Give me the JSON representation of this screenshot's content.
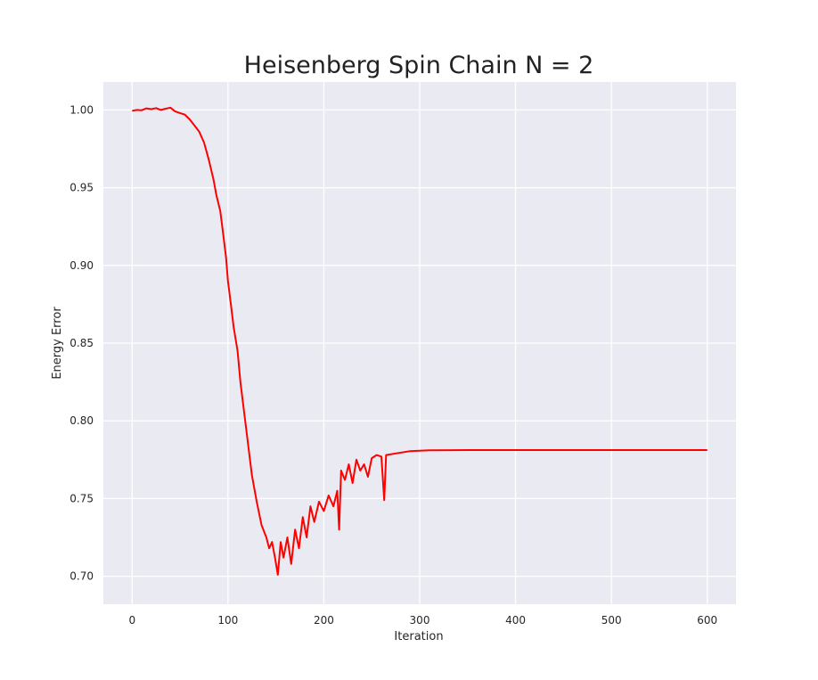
{
  "chart_data": {
    "type": "line",
    "title": "Heisenberg Spin Chain N = 2",
    "xlabel": "Iteration",
    "ylabel": "Energy Error",
    "xlim": [
      -30,
      630
    ],
    "ylim": [
      0.682,
      1.018
    ],
    "xticks": [
      "0",
      "100",
      "200",
      "300",
      "400",
      "500",
      "600"
    ],
    "yticks": [
      "0.70",
      "0.75",
      "0.80",
      "0.85",
      "0.90",
      "0.95",
      "1.00"
    ],
    "grid": true,
    "background": "#eaeaf2",
    "series": [
      {
        "color": "#ff0000",
        "points": [
          [
            0,
            0.9995
          ],
          [
            5,
            1.0
          ],
          [
            10,
            0.9998
          ],
          [
            15,
            1.001
          ],
          [
            20,
            1.0005
          ],
          [
            25,
            1.0012
          ],
          [
            30,
            1.0
          ],
          [
            35,
            1.0008
          ],
          [
            40,
            1.0015
          ],
          [
            45,
            0.999
          ],
          [
            50,
            0.998
          ],
          [
            55,
            0.997
          ],
          [
            60,
            0.994
          ],
          [
            65,
            0.99
          ],
          [
            70,
            0.986
          ],
          [
            75,
            0.979
          ],
          [
            80,
            0.968
          ],
          [
            85,
            0.955
          ],
          [
            88,
            0.945
          ],
          [
            92,
            0.935
          ],
          [
            95,
            0.92
          ],
          [
            98,
            0.905
          ],
          [
            100,
            0.89
          ],
          [
            103,
            0.875
          ],
          [
            106,
            0.86
          ],
          [
            110,
            0.845
          ],
          [
            113,
            0.825
          ],
          [
            117,
            0.805
          ],
          [
            121,
            0.785
          ],
          [
            125,
            0.765
          ],
          [
            130,
            0.748
          ],
          [
            135,
            0.733
          ],
          [
            140,
            0.725
          ],
          [
            143,
            0.718
          ],
          [
            146,
            0.722
          ],
          [
            149,
            0.712
          ],
          [
            152,
            0.701
          ],
          [
            155,
            0.722
          ],
          [
            158,
            0.712
          ],
          [
            162,
            0.725
          ],
          [
            166,
            0.708
          ],
          [
            170,
            0.73
          ],
          [
            174,
            0.718
          ],
          [
            178,
            0.738
          ],
          [
            182,
            0.725
          ],
          [
            186,
            0.745
          ],
          [
            190,
            0.735
          ],
          [
            195,
            0.748
          ],
          [
            200,
            0.742
          ],
          [
            205,
            0.752
          ],
          [
            210,
            0.745
          ],
          [
            214,
            0.755
          ],
          [
            216,
            0.73
          ],
          [
            218,
            0.768
          ],
          [
            222,
            0.762
          ],
          [
            226,
            0.772
          ],
          [
            230,
            0.76
          ],
          [
            234,
            0.775
          ],
          [
            238,
            0.768
          ],
          [
            242,
            0.772
          ],
          [
            246,
            0.764
          ],
          [
            250,
            0.776
          ],
          [
            255,
            0.778
          ],
          [
            260,
            0.777
          ],
          [
            263,
            0.749
          ],
          [
            265,
            0.778
          ],
          [
            275,
            0.779
          ],
          [
            290,
            0.7805
          ],
          [
            310,
            0.781
          ],
          [
            350,
            0.7812
          ],
          [
            400,
            0.7812
          ],
          [
            450,
            0.7812
          ],
          [
            500,
            0.7812
          ],
          [
            550,
            0.7812
          ],
          [
            600,
            0.7812
          ]
        ]
      }
    ]
  }
}
